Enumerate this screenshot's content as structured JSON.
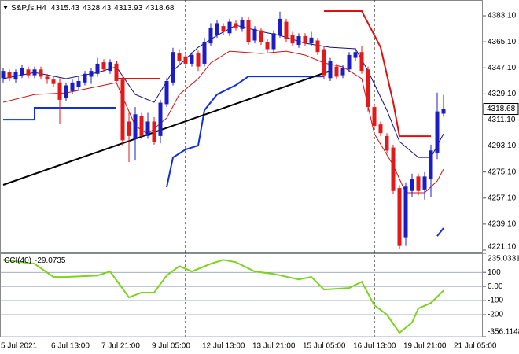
{
  "chart_data": [
    {
      "type": "candlestick",
      "title": "S&P,fs,H4",
      "categories": [
        "5 Jul 2021",
        null,
        null,
        null,
        null,
        null,
        null,
        null,
        "6 Jul 13:00",
        null,
        null,
        null,
        null,
        null,
        null,
        null,
        "7 Jul 21:00",
        null,
        null,
        null,
        null,
        null,
        null,
        null,
        "9 Jul 05:00",
        null,
        null,
        null,
        null,
        null,
        null,
        null,
        "12 Jul 13:00",
        null,
        null,
        null,
        null,
        null,
        null,
        null,
        "13 Jul 21:00",
        null,
        null,
        null,
        null,
        null,
        null,
        null,
        "15 Jul 05:00",
        null,
        null,
        null,
        null,
        null,
        null,
        null,
        "16 Jul 13:00",
        null,
        null,
        null,
        null,
        null,
        null,
        null,
        "19 Jul 21:00",
        null,
        null,
        null,
        null,
        null,
        null,
        null,
        "21 Jul 05:00"
      ],
      "open": [
        4340,
        4344,
        4339,
        4342,
        4346,
        4342,
        4346,
        4341,
        4339,
        4337,
        4326,
        4331,
        4334,
        4337,
        4341,
        4343,
        4351,
        4345,
        4350,
        4339,
        4310,
        4298,
        4314,
        4300,
        4310,
        4300,
        4322,
        4337,
        4357,
        4355,
        4350,
        4357,
        4350,
        4364,
        4370,
        4376,
        4371,
        4378,
        4374,
        4380,
        4366,
        4373,
        4365,
        4360,
        4370,
        4379,
        4370,
        4363,
        4369,
        4364,
        4366,
        4360,
        4340,
        4348,
        4342,
        4346,
        4354,
        4358,
        4346,
        4320,
        4308,
        4300,
        4292,
        4264,
        4230,
        4262,
        4272,
        4263,
        4270,
        4288,
        4315.43,
        null,
        null
      ],
      "high": [
        4347,
        4346,
        4346,
        4349,
        4348,
        4348,
        4348,
        4343,
        4341,
        4340,
        4337,
        4339,
        4341,
        4345,
        4347,
        4354,
        4353,
        4353,
        4352,
        4341,
        4316,
        4320,
        4316,
        4316,
        4313,
        4325,
        4340,
        4361,
        4360,
        4357,
        4358,
        4359,
        4368,
        4378,
        4380,
        4378,
        4381,
        4380,
        4382,
        4382,
        4376,
        4375,
        4367,
        4373,
        4386,
        4381,
        4372,
        4371,
        4371,
        4372,
        4368,
        4362,
        4354,
        4350,
        4349,
        4358,
        4361,
        4362,
        4348,
        4322,
        4310,
        4302,
        4294,
        4266,
        4268,
        4274,
        4274,
        4275,
        4294,
        4330,
        4328.43,
        null,
        null
      ],
      "low": [
        4337,
        4338,
        4337,
        4340,
        4340,
        4340,
        4339,
        4336,
        4334,
        4308,
        4324,
        4329,
        4332,
        4335,
        4336,
        4341,
        4344,
        4343,
        4336,
        4293,
        4282,
        4283,
        4298,
        4298,
        4294,
        4295,
        4320,
        4335,
        4350,
        4348,
        4348,
        4345,
        4348,
        4362,
        4368,
        4370,
        4369,
        4373,
        4372,
        4363,
        4364,
        4363,
        4358,
        4358,
        4368,
        4365,
        4362,
        4361,
        4362,
        4362,
        4356,
        4339,
        4338,
        4339,
        4340,
        4344,
        4352,
        4343,
        4317,
        4305,
        4300,
        4288,
        4260,
        4222,
        4224,
        4258,
        4259,
        4256,
        4258,
        4284,
        4313.93,
        null,
        null
      ],
      "close": [
        4345,
        4340,
        4344,
        4347,
        4342,
        4346,
        4341,
        4339,
        4336,
        4325,
        4335,
        4337,
        4338,
        4343,
        4345,
        4350,
        4346,
        4351,
        4338,
        4297,
        4300,
        4315,
        4300,
        4310,
        4296,
        4323,
        4338,
        4358,
        4352,
        4350,
        4356,
        4348,
        4365,
        4375,
        4378,
        4372,
        4379,
        4375,
        4380,
        4365,
        4374,
        4365,
        4360,
        4371,
        4381,
        4367,
        4364,
        4369,
        4364,
        4368,
        4358,
        4342,
        4352,
        4341,
        4347,
        4356,
        4358,
        4345,
        4320,
        4307,
        4302,
        4290,
        4262,
        4224,
        4265,
        4270,
        4262,
        4272,
        4290,
        4317,
        4318.68,
        null,
        null
      ],
      "up_color": "#1c1cc4",
      "down_color": "#e41818",
      "ylim": [
        4220,
        4394
      ],
      "yticks": [
        {
          "value": 4383.1,
          "label": "4383.10"
        },
        {
          "value": 4365.1,
          "label": "4365.10"
        },
        {
          "value": 4347.1,
          "label": "4347.10"
        },
        {
          "value": 4329.1,
          "label": "4329.10"
        },
        {
          "value": 4311.1,
          "label": "4311.10"
        },
        {
          "value": 4293.1,
          "label": "4293.10"
        },
        {
          "value": 4275.1,
          "label": "4275.10"
        },
        {
          "value": 4257.1,
          "label": "4257.10"
        },
        {
          "value": 4239.1,
          "label": "4239.10"
        },
        {
          "value": 4221.1,
          "label": "4221.10"
        }
      ],
      "grid": false,
      "lines": [
        {
          "color": "#10107a",
          "width": 1,
          "x": [
            0,
            5,
            10,
            15,
            18,
            21,
            24,
            27,
            31,
            34,
            37,
            41,
            44,
            48,
            52,
            56,
            58,
            61,
            63,
            66,
            68,
            70
          ],
          "values": [
            4339.6,
            4343.9,
            4339.6,
            4343.9,
            4347.8,
            4328.7,
            4323.3,
            4345.0,
            4361.3,
            4369.5,
            4376.6,
            4372.2,
            4369.5,
            4364.1,
            4361.3,
            4360.3,
            4345.0,
            4317.8,
            4296.1,
            4285.2,
            4285.2,
            4301.5
          ]
        },
        {
          "color": "#d01010",
          "width": 1,
          "x": [
            0,
            5,
            10,
            15,
            18,
            21,
            23,
            26,
            28,
            31,
            33,
            36,
            41,
            45,
            48,
            51,
            54,
            57,
            59,
            62,
            64,
            67,
            69,
            70
          ],
          "values": [
            4323.3,
            4328.7,
            4329.8,
            4334.2,
            4336.9,
            4307.0,
            4301.5,
            4312.4,
            4328.7,
            4339.6,
            4350.5,
            4358.6,
            4357.0,
            4358.6,
            4355.9,
            4350.5,
            4347.8,
            4339.6,
            4301.5,
            4279.8,
            4260.8,
            4260.8,
            4268.9,
            4277.1
          ]
        },
        {
          "color": "#1030e0",
          "width": 2,
          "x": [
            0,
            5,
            5,
            18,
            22,
            26,
            27,
            29,
            31,
            32,
            34,
            37,
            39,
            51,
            60,
            69,
            70
          ],
          "values": [
            4311.3,
            4311.3,
            4319.5,
            4319.5,
            null,
            4264.6,
            4285.2,
            4290.7,
            4293.4,
            4317.8,
            4328.7,
            4335.2,
            4341.2,
            4341.2,
            null,
            4230.8,
            4236.3
          ]
        },
        {
          "color": "#e01010",
          "width": 2,
          "x": [
            18,
            18,
            25,
            40,
            51,
            57,
            60,
            62,
            63,
            68
          ],
          "values": [
            4351.6,
            4339.6,
            4339.6,
            null,
            4386.4,
            4386.4,
            4361.3,
            4323.3,
            4299.9,
            4299.9
          ]
        },
        {
          "color": "#000000",
          "width": 2,
          "x": [
            0,
            52
          ],
          "values": [
            4266.2,
            4345.0
          ]
        }
      ]
    },
    {
      "type": "line",
      "title": "CCI(40)",
      "x": [
        0,
        5,
        8,
        10,
        15,
        17,
        20,
        22,
        24,
        26,
        28,
        30,
        33,
        35,
        37,
        40,
        43,
        47,
        49,
        51,
        55,
        57,
        59,
        61,
        63,
        65,
        66,
        68,
        70
      ],
      "values": [
        189,
        161,
        67,
        67,
        78,
        106,
        -78,
        -44,
        -44,
        78,
        144,
        106,
        161,
        189,
        172,
        106,
        89,
        50,
        67,
        -22,
        -11,
        33,
        -133,
        -200,
        -328,
        -256,
        -156,
        -117,
        -29.0735
      ],
      "color": "#7cd41a",
      "ylim": [
        -356.1148,
        235.0331
      ],
      "yticks": [
        235.0331,
        100,
        {
          "value": 0,
          "label": "0.00"
        },
        -100,
        -200,
        -356.1148
      ],
      "grid": true
    }
  ]
}
